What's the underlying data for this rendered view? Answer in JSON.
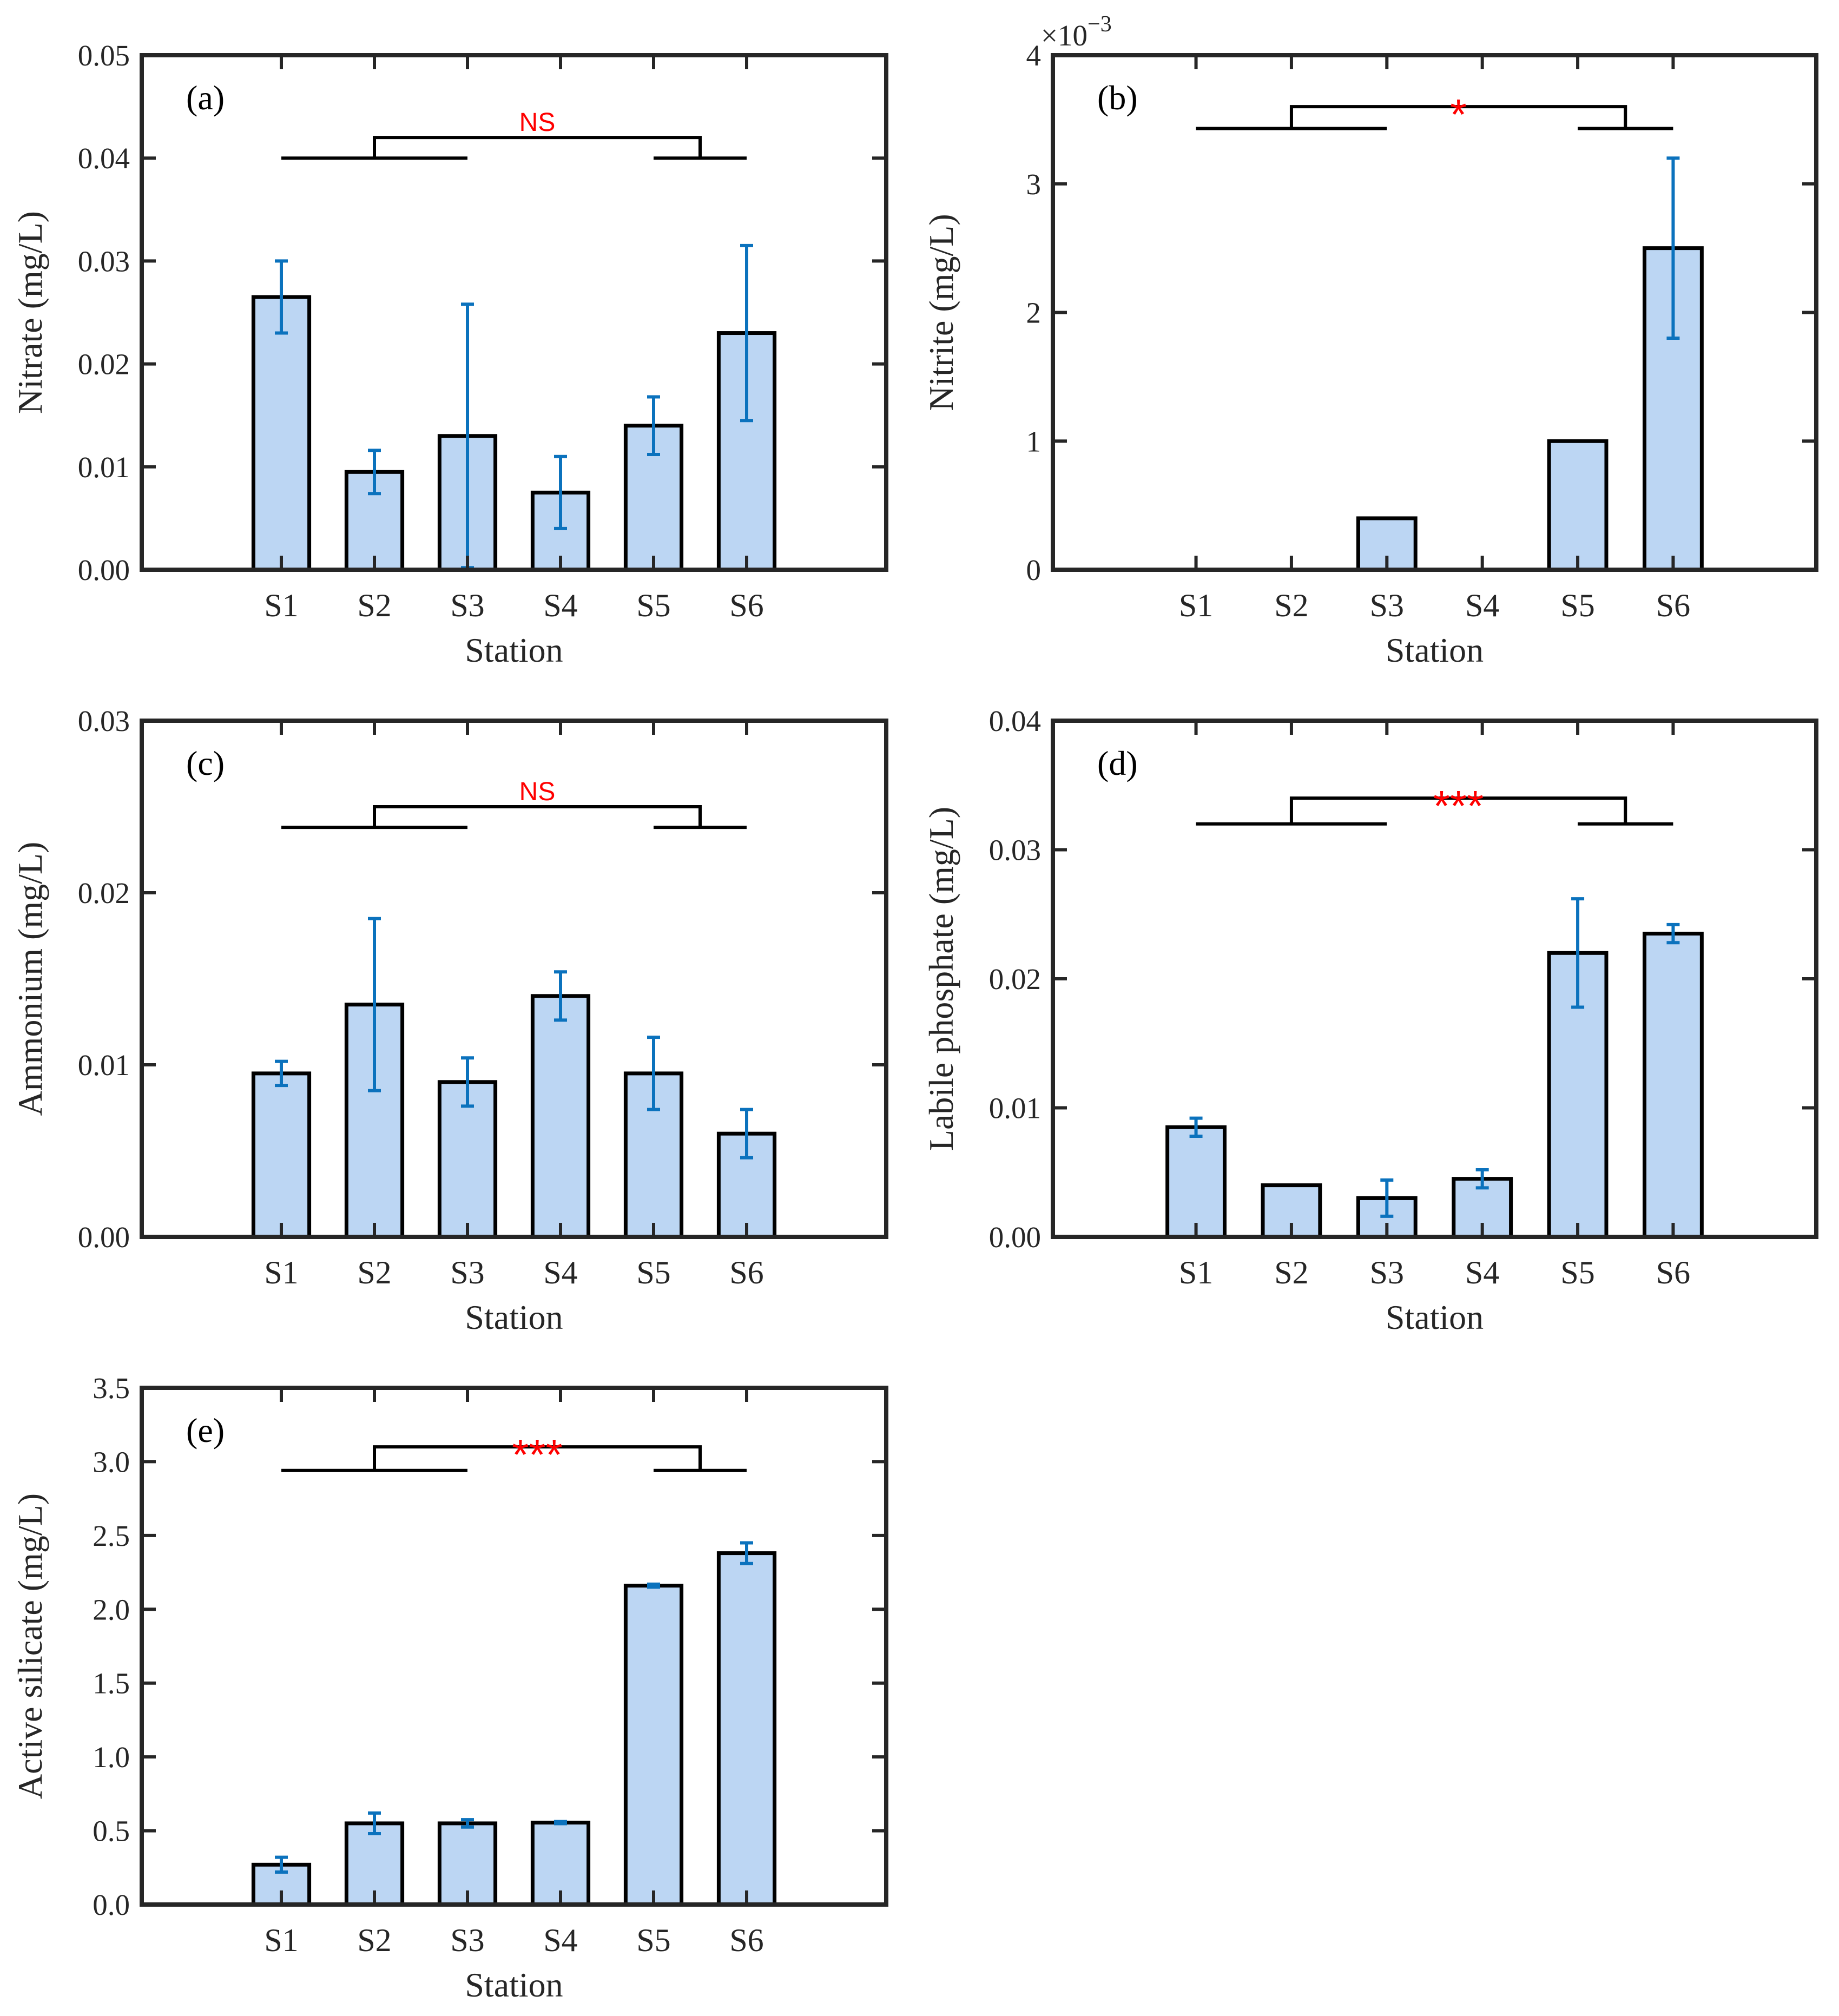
{
  "chart_data": [
    {
      "type": "bar",
      "panel_label": "(a)",
      "categories": [
        "S1",
        "S2",
        "S3",
        "S4",
        "S5",
        "S6"
      ],
      "values": [
        0.0265,
        0.0095,
        0.013,
        0.0075,
        0.014,
        0.023
      ],
      "errors": [
        0.0035,
        0.0021,
        0.0128,
        0.0035,
        0.0028,
        0.0085
      ],
      "xlabel": "Station",
      "ylabel": "Nitrate (mg/L)",
      "ylim": [
        0,
        0.05
      ],
      "yticks": [
        0,
        0.01,
        0.02,
        0.03,
        0.04,
        0.05
      ],
      "ytick_labels": [
        "0.00",
        "0.01",
        "0.02",
        "0.03",
        "0.04",
        "0.05"
      ],
      "exponent_label": "",
      "significance": "NS",
      "bracket_y": [
        0.04,
        0.042
      ]
    },
    {
      "type": "bar",
      "panel_label": "(b)",
      "categories": [
        "S1",
        "S2",
        "S3",
        "S4",
        "S5",
        "S6"
      ],
      "values": [
        0,
        0,
        0.0004,
        0,
        0.001,
        0.0025
      ],
      "errors": [
        0,
        0,
        0,
        0,
        0,
        0.0007
      ],
      "xlabel": "Station",
      "ylabel": "Nitrite (mg/L)",
      "ylim": [
        0,
        0.004
      ],
      "yticks": [
        0,
        0.001,
        0.002,
        0.003,
        0.004
      ],
      "ytick_labels": [
        "0",
        "1",
        "2",
        "3",
        "4"
      ],
      "exponent_label": "×10",
      "exponent_power": "−3",
      "significance": "*",
      "bracket_y": [
        0.00343,
        0.0036
      ]
    },
    {
      "type": "bar",
      "panel_label": "(c)",
      "categories": [
        "S1",
        "S2",
        "S3",
        "S4",
        "S5",
        "S6"
      ],
      "values": [
        0.0095,
        0.0135,
        0.009,
        0.014,
        0.0095,
        0.006
      ],
      "errors": [
        0.0007,
        0.005,
        0.0014,
        0.0014,
        0.0021,
        0.0014
      ],
      "xlabel": "Station",
      "ylabel": "Ammonium (mg/L)",
      "ylim": [
        0,
        0.03
      ],
      "yticks": [
        0,
        0.01,
        0.02,
        0.03
      ],
      "ytick_labels": [
        "0.00",
        "0.01",
        "0.02",
        "0.03"
      ],
      "exponent_label": "",
      "significance": "NS",
      "bracket_y": [
        0.0238,
        0.025
      ]
    },
    {
      "type": "bar",
      "panel_label": "(d)",
      "categories": [
        "S1",
        "S2",
        "S3",
        "S4",
        "S5",
        "S6"
      ],
      "values": [
        0.0085,
        0.004,
        0.003,
        0.0045,
        0.022,
        0.0235
      ],
      "errors": [
        0.0007,
        0,
        0.0014,
        0.0007,
        0.0042,
        0.0007
      ],
      "xlabel": "Station",
      "ylabel": "Labile phosphate (mg/L)",
      "ylim": [
        0,
        0.04
      ],
      "yticks": [
        0,
        0.01,
        0.02,
        0.03,
        0.04
      ],
      "ytick_labels": [
        "0.00",
        "0.01",
        "0.02",
        "0.03",
        "0.04"
      ],
      "exponent_label": "",
      "significance": "***",
      "bracket_y": [
        0.032,
        0.034
      ]
    },
    {
      "type": "bar",
      "panel_label": "(e)",
      "categories": [
        "S1",
        "S2",
        "S3",
        "S4",
        "S5",
        "S6"
      ],
      "values": [
        0.27,
        0.55,
        0.55,
        0.555,
        2.16,
        2.38
      ],
      "errors": [
        0.05,
        0.07,
        0.025,
        0.007,
        0.01,
        0.07
      ],
      "xlabel": "Station",
      "ylabel": "Active silicate (mg/L)",
      "ylim": [
        0,
        3.5
      ],
      "yticks": [
        0,
        0.5,
        1.0,
        1.5,
        2.0,
        2.5,
        3.0,
        3.5
      ],
      "ytick_labels": [
        "0.0",
        "0.5",
        "1.0",
        "1.5",
        "2.0",
        "2.5",
        "3.0",
        "3.5"
      ],
      "exponent_label": "",
      "significance": "***",
      "bracket_y": [
        2.94,
        3.1
      ]
    }
  ],
  "colors": {
    "bar_fill": "#bcd6f3",
    "bar_edge": "#000000",
    "error_bar": "#0b72bd",
    "significance_text": "#ff0000",
    "axes": "#262626"
  }
}
